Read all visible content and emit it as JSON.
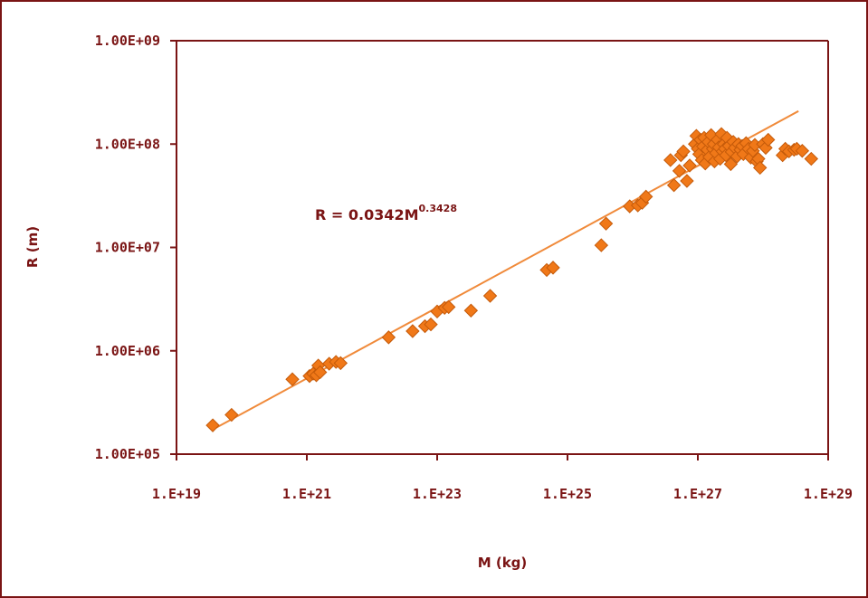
{
  "chart_data": {
    "type": "scatter",
    "title": "",
    "xlabel": "M (kg)",
    "ylabel": "R (m)",
    "x_scale": "log",
    "y_scale": "log",
    "xlim": [
      1e+19,
      1e+29
    ],
    "ylim": [
      100000.0,
      1000000000.0
    ],
    "x_ticks": [
      {
        "value": 1e+19,
        "label": "1.E+19"
      },
      {
        "value": 1e+21,
        "label": "1.E+21"
      },
      {
        "value": 1e+23,
        "label": "1.E+23"
      },
      {
        "value": 1e+25,
        "label": "1.E+25"
      },
      {
        "value": 1e+27,
        "label": "1.E+27"
      },
      {
        "value": 1e+29,
        "label": "1.E+29"
      }
    ],
    "y_ticks": [
      {
        "value": 100000.0,
        "label": "1.00E+05"
      },
      {
        "value": 1000000.0,
        "label": "1.00E+06"
      },
      {
        "value": 10000000.0,
        "label": "1.00E+07"
      },
      {
        "value": 100000000.0,
        "label": "1.00E+08"
      },
      {
        "value": 1000000000.0,
        "label": "1.00E+09"
      }
    ],
    "grid": false,
    "legend": "none",
    "marker": "diamond",
    "colors": {
      "marker_fill": "#f07818",
      "marker_stroke": "#c45a0a",
      "trendline": "#f08a3a",
      "axis": "#7a1414",
      "border": "#7a1414"
    },
    "annotation": {
      "text": "R = 0.0342M",
      "exponent": "0.3428"
    },
    "trendline": {
      "coefficient": 0.0342,
      "exponent": 0.3428,
      "x_range": [
        3.5e+19,
        3.5e+28
      ]
    },
    "series": [
      {
        "points": [
          [
            3.6e+19,
            190000.0
          ],
          [
            7e+19,
            240000.0
          ],
          [
            6e+20,
            530000.0
          ],
          [
            1.1e+21,
            570000.0
          ],
          [
            1.25e+21,
            600000.0
          ],
          [
            1.4e+21,
            580000.0
          ],
          [
            1.5e+21,
            720000.0
          ],
          [
            1.6e+21,
            620000.0
          ],
          [
            2.2e+21,
            750000.0
          ],
          [
            2.8e+21,
            780000.0
          ],
          [
            3.3e+21,
            760000.0
          ],
          [
            1.8e+22,
            1350000.0
          ],
          [
            4.2e+22,
            1550000.0
          ],
          [
            6.5e+22,
            1730000.0
          ],
          [
            8e+22,
            1800000.0
          ],
          [
            1e+23,
            2400000.0
          ],
          [
            1.3e+23,
            2600000.0
          ],
          [
            1.5e+23,
            2650000.0
          ],
          [
            3.3e+23,
            2450000.0
          ],
          [
            6.5e+23,
            3400000.0
          ],
          [
            4.8e+24,
            6050000.0
          ],
          [
            6e+24,
            6370000.0
          ],
          [
            3.3e+25,
            10500000.0
          ],
          [
            3.9e+25,
            17000000.0
          ],
          [
            9e+25,
            25000000.0
          ],
          [
            1.2e+26,
            25500000.0
          ],
          [
            1.4e+26,
            27000000.0
          ],
          [
            1.6e+26,
            31000000.0
          ],
          [
            3.8e+26,
            70000000.0
          ],
          [
            4.3e+26,
            40000000.0
          ],
          [
            5.2e+26,
            55000000.0
          ],
          [
            5.5e+26,
            78000000.0
          ],
          [
            6e+26,
            85000000.0
          ],
          [
            6.8e+26,
            44000000.0
          ],
          [
            7.5e+26,
            62000000.0
          ],
          [
            9e+26,
            100000000.0
          ],
          [
            9.5e+26,
            120000000.0
          ],
          [
            1e+27,
            90000000.0
          ],
          [
            1.05e+27,
            80000000.0
          ],
          [
            1.1e+27,
            110000000.0
          ],
          [
            1.15e+27,
            70000000.0
          ],
          [
            1.2e+27,
            95000000.0
          ],
          [
            1.25e+27,
            115000000.0
          ],
          [
            1.3e+27,
            65000000.0
          ],
          [
            1.4e+27,
            88000000.0
          ],
          [
            1.45e+27,
            105000000.0
          ],
          [
            1.5e+27,
            75000000.0
          ],
          [
            1.6e+27,
            122000000.0
          ],
          [
            1.7e+27,
            90000000.0
          ],
          [
            1.75e+27,
            100000000.0
          ],
          [
            1.8e+27,
            68000000.0
          ],
          [
            1.9e+27,
            82000000.0
          ],
          [
            2e+27,
            110000000.0
          ],
          [
            2.1e+27,
            93000000.0
          ],
          [
            2.2e+27,
            72000000.0
          ],
          [
            2.3e+27,
            125000000.0
          ],
          [
            2.4e+27,
            85000000.0
          ],
          [
            2.5e+27,
            100000000.0
          ],
          [
            2.6e+27,
            90000000.0
          ],
          [
            2.7e+27,
            78000000.0
          ],
          [
            2.8e+27,
            115000000.0
          ],
          [
            3e+27,
            96000000.0
          ],
          [
            3.2e+27,
            64000000.0
          ],
          [
            3.3e+27,
            84000000.0
          ],
          [
            3.5e+27,
            105000000.0
          ],
          [
            3.7e+27,
            92000000.0
          ],
          [
            4e+27,
            76000000.0
          ],
          [
            4.2e+27,
            100000000.0
          ],
          [
            4.5e+27,
            88000000.0
          ],
          [
            4.8e+27,
            96000000.0
          ],
          [
            5e+27,
            80000000.0
          ],
          [
            5.5e+27,
            102000000.0
          ],
          [
            6e+27,
            90000000.0
          ],
          [
            6.5e+27,
            74000000.0
          ],
          [
            7e+27,
            86000000.0
          ],
          [
            7.5e+27,
            98000000.0
          ],
          [
            8e+27,
            68000000.0
          ],
          [
            8.5e+27,
            72000000.0
          ],
          [
            9e+27,
            59000000.0
          ],
          [
            1e+28,
            100000000.0
          ],
          [
            1.1e+28,
            92000000.0
          ],
          [
            1.2e+28,
            110000000.0
          ],
          [
            2e+28,
            78000000.0
          ],
          [
            2.2e+28,
            90000000.0
          ],
          [
            2.5e+28,
            85000000.0
          ],
          [
            3e+28,
            88000000.0
          ],
          [
            3.3e+28,
            90000000.0
          ],
          [
            4e+28,
            86000000.0
          ],
          [
            5.5e+28,
            72000000.0
          ]
        ]
      }
    ]
  }
}
